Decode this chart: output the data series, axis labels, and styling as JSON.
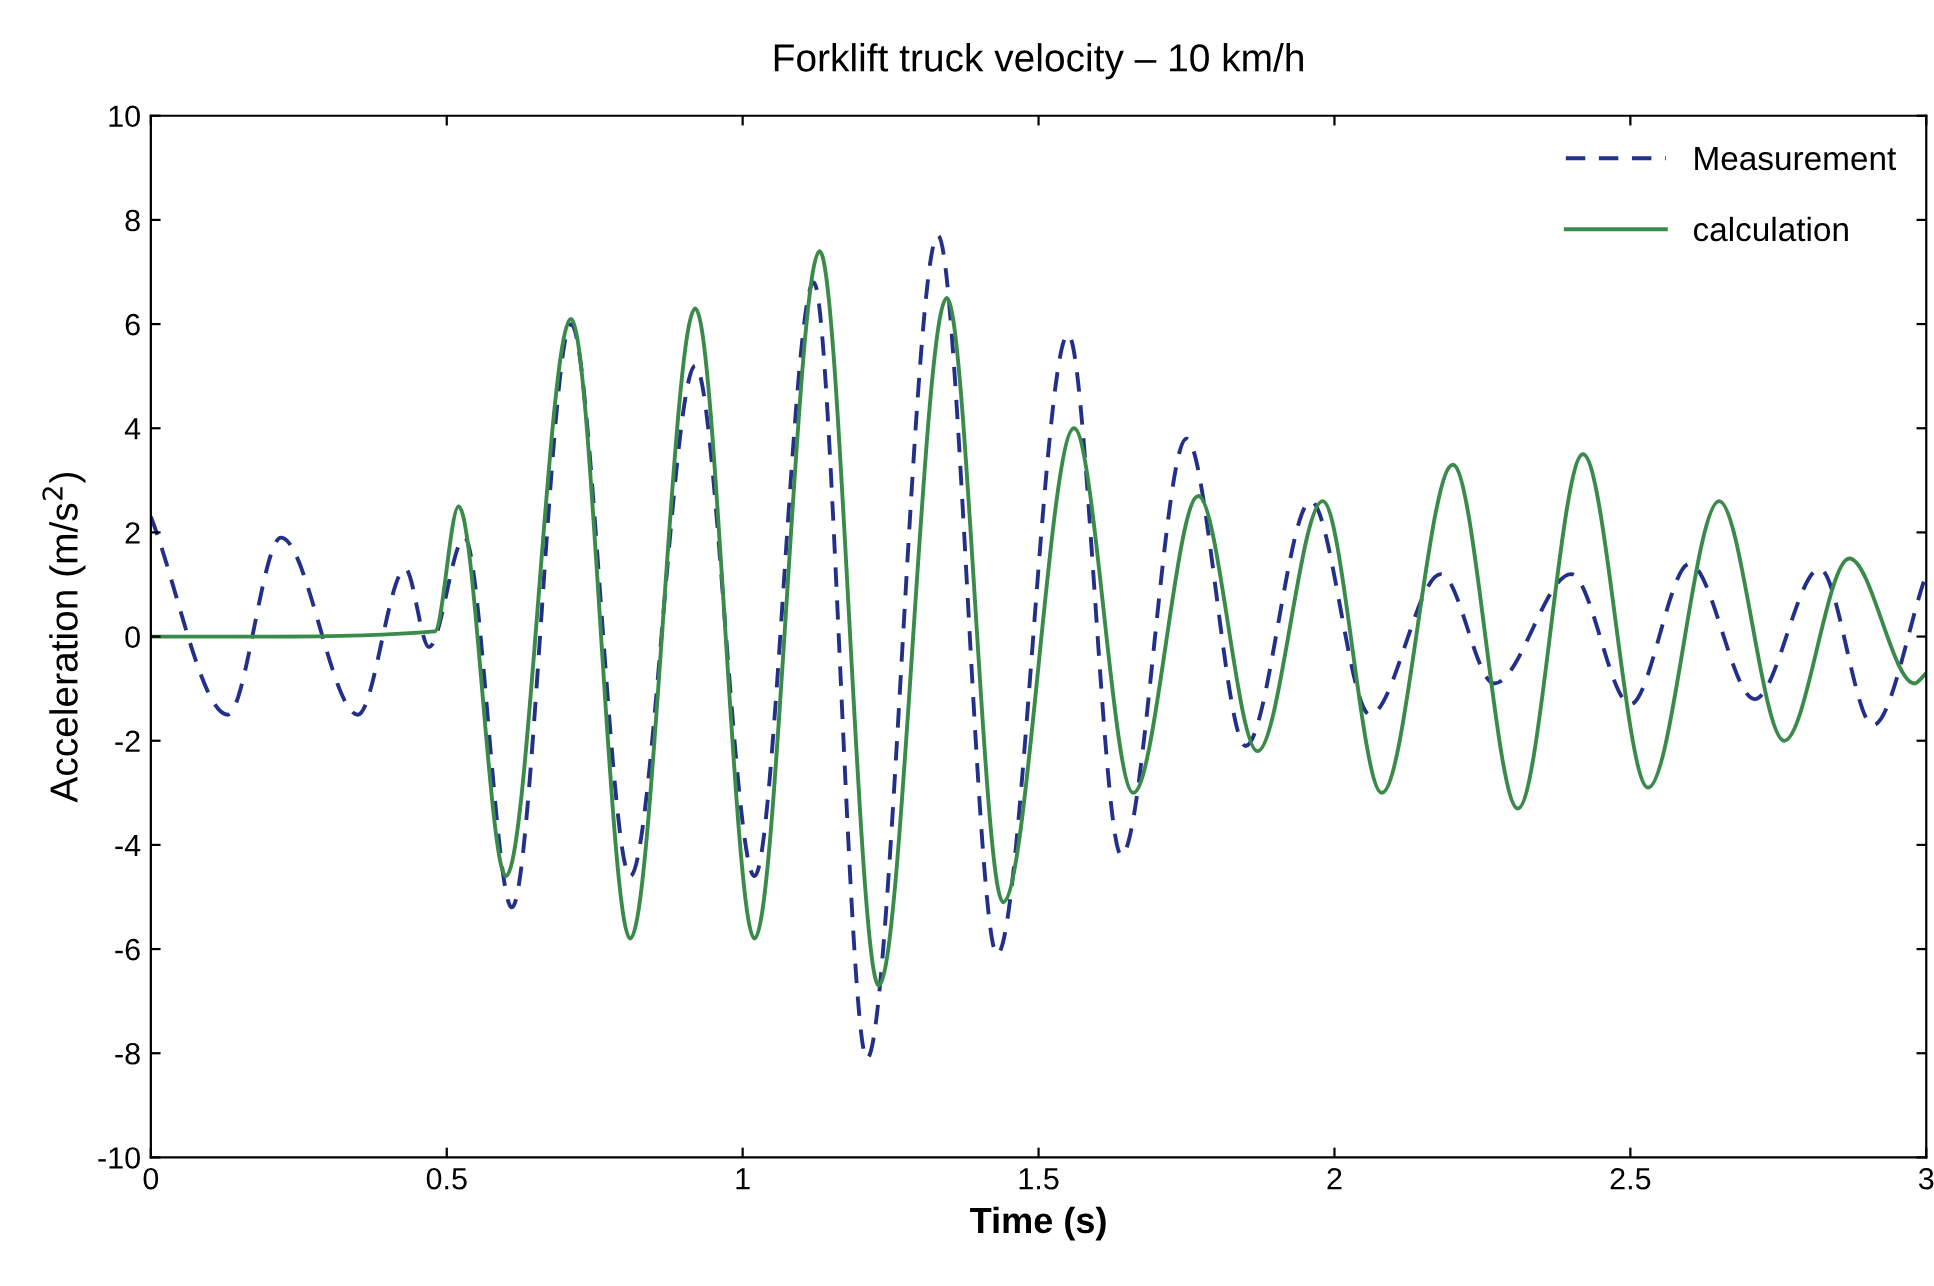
{
  "chart_data": {
    "type": "line",
    "title": "Forklift truck velocity – 10 km/h",
    "xlabel": "Time (s)",
    "ylabel": "Acceleration (m/s$^{2}$)",
    "xlim": [
      0,
      3
    ],
    "xticks": [
      0,
      0.5,
      1,
      1.5,
      2,
      2.5,
      3
    ],
    "ylim": [
      -10,
      10
    ],
    "yticks": [
      -10,
      -8,
      -6,
      -4,
      -2,
      0,
      2,
      4,
      6,
      8,
      10
    ],
    "grid": false,
    "legend": "top right",
    "series": [
      {
        "name": "Measurement",
        "color": "#22308a",
        "line_style": "dashed",
        "x": [
          0,
          0.13,
          0.22,
          0.35,
          0.43,
          0.47,
          0.53,
          0.61,
          0.71,
          0.81,
          0.92,
          1.02,
          1.12,
          1.21,
          1.33,
          1.43,
          1.55,
          1.64,
          1.75,
          1.85,
          1.96,
          2.06,
          2.18,
          2.27,
          2.4,
          2.5,
          2.6,
          2.71,
          2.82,
          2.91,
          3.0
        ],
        "values": [
          2.3,
          -1.5,
          1.9,
          -1.5,
          1.3,
          -0.2,
          1.9,
          -5.2,
          6.0,
          -4.6,
          5.2,
          -4.6,
          6.8,
          -8.1,
          7.7,
          -6.1,
          5.8,
          -4.2,
          3.8,
          -2.1,
          2.6,
          -1.5,
          1.2,
          -0.9,
          1.2,
          -1.3,
          1.4,
          -1.2,
          1.3,
          -1.7,
          1.2
        ]
      },
      {
        "name": "calculation",
        "color": "#3a8a4a",
        "line_style": "solid",
        "x": [
          0,
          0.2,
          0.48,
          0.52,
          0.6,
          0.71,
          0.81,
          0.92,
          1.02,
          1.13,
          1.23,
          1.345,
          1.44,
          1.56,
          1.66,
          1.77,
          1.87,
          1.98,
          2.08,
          2.2,
          2.31,
          2.42,
          2.53,
          2.65,
          2.76,
          2.87,
          2.98,
          3.0
        ],
        "values": [
          0,
          0,
          0.1,
          2.5,
          -4.6,
          6.1,
          -5.8,
          6.3,
          -5.8,
          7.4,
          -6.7,
          6.5,
          -5.1,
          4.0,
          -3.0,
          2.7,
          -2.2,
          2.6,
          -3.0,
          3.3,
          -3.3,
          3.5,
          -2.9,
          2.6,
          -2.0,
          1.5,
          -0.9,
          -0.7
        ]
      }
    ]
  }
}
